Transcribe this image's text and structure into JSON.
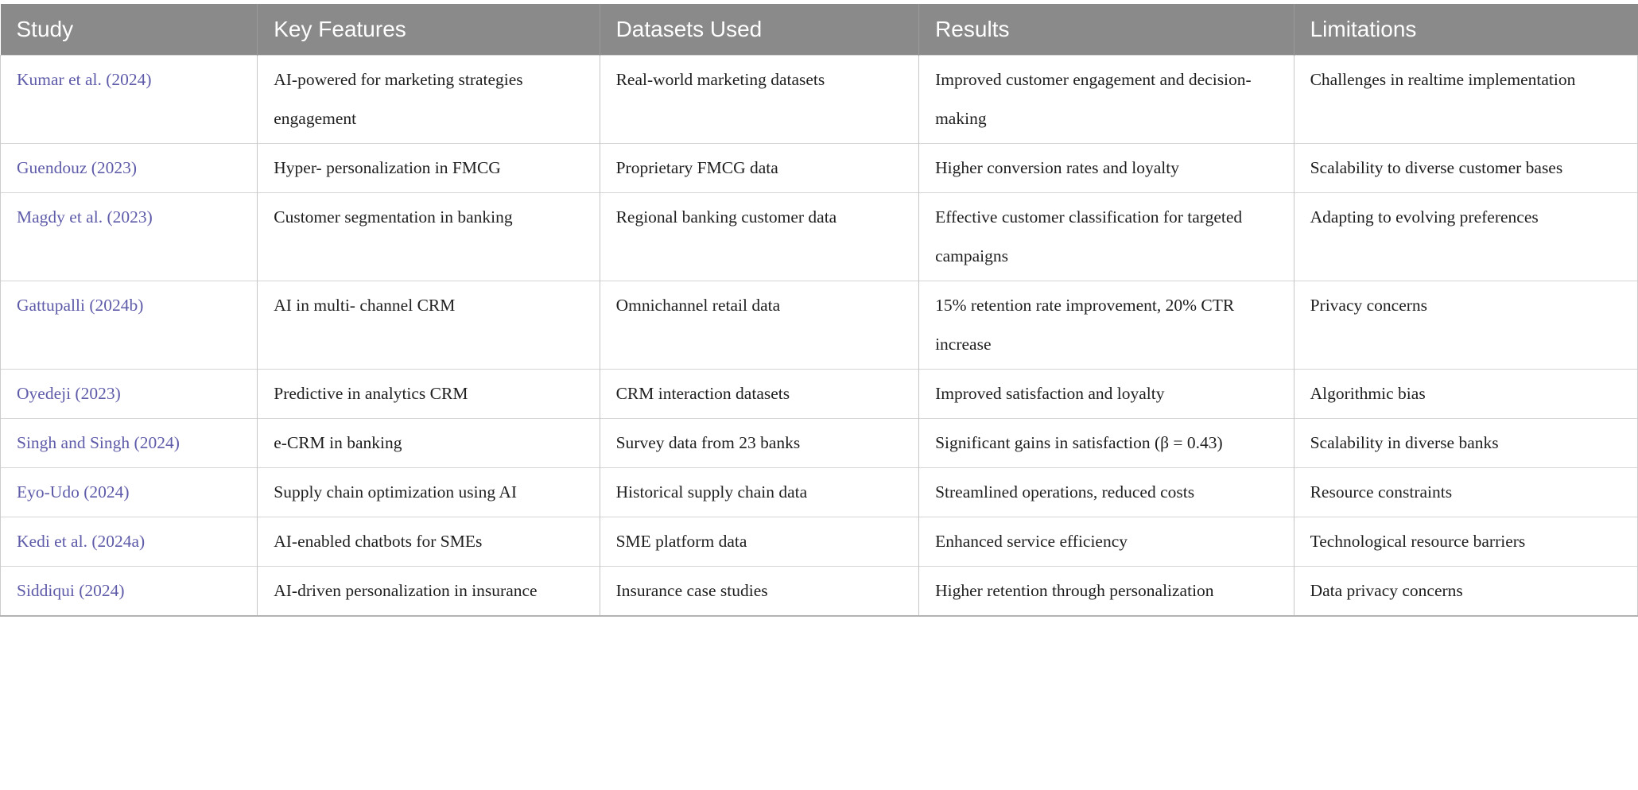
{
  "colors": {
    "header_background": "#8a8a8a",
    "header_text": "#ffffff",
    "citation_link": "#5e5ba9",
    "body_text": "#1f1f1f",
    "grid_line": "#c6c6c6"
  },
  "table": {
    "columns": [
      "Study",
      "Key Features",
      "Datasets Used",
      "Results",
      "Limitations"
    ],
    "keys": [
      "study",
      "key_features",
      "datasets_used",
      "results",
      "limitations"
    ],
    "rows": [
      {
        "study": "Kumar et al. (2024)",
        "key_features": "AI-powered for marketing strategies engagement",
        "datasets_used": "Real-world marketing datasets",
        "results": "Improved customer engagement and decision-making",
        "limitations": "Challenges in realtime implementation"
      },
      {
        "study": "Guendouz (2023)",
        "key_features": "Hyper- personalization in FMCG",
        "datasets_used": "Proprietary FMCG data",
        "results": "Higher conversion rates and loyalty",
        "limitations": "Scalability to diverse customer bases"
      },
      {
        "study": "Magdy et al. (2023)",
        "key_features": "Customer segmentation in banking",
        "datasets_used": "Regional banking customer data",
        "results": "Effective customer classification for targeted campaigns",
        "limitations": "Adapting to evolving preferences"
      },
      {
        "study": "Gattupalli (2024b)",
        "key_features": "AI in multi- channel CRM",
        "datasets_used": "Omnichannel retail data",
        "results": "15% retention rate improvement, 20% CTR increase",
        "limitations": "Privacy concerns"
      },
      {
        "study": "Oyedeji (2023)",
        "key_features": "Predictive in analytics CRM",
        "datasets_used": "CRM interaction datasets",
        "results": "Improved satisfaction and loyalty",
        "limitations": "Algorithmic bias"
      },
      {
        "study": "Singh and Singh (2024)",
        "key_features": "e-CRM in banking",
        "datasets_used": "Survey data from 23 banks",
        "results": "Significant gains in satisfaction (β = 0.43)",
        "limitations": "Scalability in diverse banks"
      },
      {
        "study": "Eyo-Udo (2024)",
        "key_features": "Supply chain optimization using AI",
        "datasets_used": "Historical supply chain data",
        "results": "Streamlined operations, reduced costs",
        "limitations": "Resource constraints"
      },
      {
        "study": "Kedi et al. (2024a)",
        "key_features": "AI-enabled chatbots for SMEs",
        "datasets_used": "SME platform data",
        "results": "Enhanced service efficiency",
        "limitations": "Technological resource barriers"
      },
      {
        "study": "Siddiqui (2024)",
        "key_features": "AI-driven personalization in insurance",
        "datasets_used": "Insurance case studies",
        "results": "Higher retention through personalization",
        "limitations": "Data privacy concerns"
      }
    ]
  }
}
